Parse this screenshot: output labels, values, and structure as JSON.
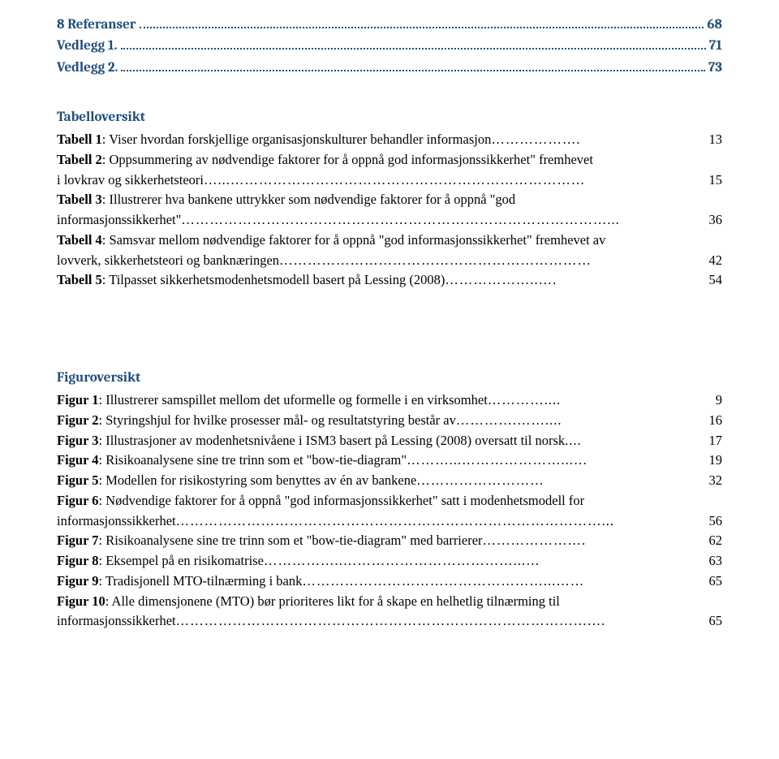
{
  "toc": [
    {
      "label": "8 Referanser",
      "page": "68"
    },
    {
      "label": "Vedlegg 1.",
      "page": "71"
    },
    {
      "label": "Vedlegg 2.",
      "page": "73"
    }
  ],
  "table_overview": {
    "heading": "Tabelloversikt",
    "items": [
      {
        "lines": [
          "<b>Tabell 1</b>: Viser hvordan forskjellige organisasjonskulturer behandler informasjon"
        ],
        "leader": "……………….",
        "page": "13"
      },
      {
        "lines": [
          "<b>Tabell 2</b>: Oppsummering av nødvendige faktorer for å oppnå god informasjonssikkerhet\" fremhevet",
          "i lovkrav og sikkerhetsteori"
        ],
        "leader": "…...…………………………………………………………………",
        "page": " 15"
      },
      {
        "lines": [
          "<b>Tabell 3</b>: Illustrerer hva bankene uttrykker som nødvendige faktorer for å oppnå \"god",
          "informasjonssikkerhet\""
        ],
        "leader": "………………………………………………………………………………...",
        "page": "36"
      },
      {
        "lines": [
          "<b>Tabell 4</b>: Samsvar mellom nødvendige faktorer for å oppnå \"god informasjonssikkerhet\" fremhevet av",
          "lovverk, sikkerhetsteori og banknæringen"
        ],
        "leader": "…………………………………………………………",
        "page": "42"
      },
      {
        "lines": [
          "<b>Tabell 5</b>: Tilpasset sikkerhetsmodenhetsmodell basert på Lessing (2008)"
        ],
        "leader": "………………..….",
        "page": "54"
      }
    ]
  },
  "figure_overview": {
    "heading": "Figuroversikt",
    "items": [
      {
        "lines": [
          "<b>Figur 1</b>: Illustrerer samspillet mellom det uformelle og formelle i en virksomhet"
        ],
        "leader": "…………....",
        "page": " 9"
      },
      {
        "lines": [
          "<b>Figur 2</b>: Styringshjul for hvilke prosesser mål- og resultatstyring består av"
        ],
        "leader": "………….……....",
        "page": "16"
      },
      {
        "lines": [
          "<b>Figur 3</b>: Illustrasjoner av modenhetsnivåene i ISM3 basert på Lessing (2008) oversatt til norsk"
        ],
        "leader": "....",
        "page": "17"
      },
      {
        "lines": [
          "<b>Figur 4</b>: Risikoanalysene sine tre trinn som et \"bow-tie-diagram\""
        ],
        "leader": "………...…………………...…",
        "page": "19"
      },
      {
        "lines": [
          "<b>Figur 5</b>: Modellen for risikostyring som benyttes av én av bankene"
        ],
        "leader": "………………………",
        "page": " 32"
      },
      {
        "lines": [
          "<b>Figur 6</b>: Nødvendige faktorer for å oppnå \"god informasjonssikkerhet\" satt i modenhetsmodell for",
          "informasjonssikkerhet"
        ],
        "leader": "………………………………………………………………………………...",
        "page": "56"
      },
      {
        "lines": [
          "<b>Figur 7</b>: Risikoanalysene sine tre trinn som et \"bow-tie-diagram\" med barrierer"
        ],
        "leader": "………………….",
        "page": "62"
      },
      {
        "lines": [
          "<b>Figur 8</b>: Eksempel på en risikomatrise"
        ],
        "leader": "……………..………………………………...…",
        "page": " 63"
      },
      {
        "lines": [
          "<b>Figur 9</b>: Tradisjonell MTO-tilnærming i bank"
        ],
        "leader": "……………………………………………...……",
        "page": "65"
      },
      {
        "lines": [
          "<b>Figur 10</b>: Alle dimensjonene (MTO) bør prioriteres likt for å skape en helhetlig tilnærming til",
          "informasjonssikkerhet"
        ],
        "leader": "…………………………………………………………………………….…",
        "page": "65"
      }
    ]
  }
}
